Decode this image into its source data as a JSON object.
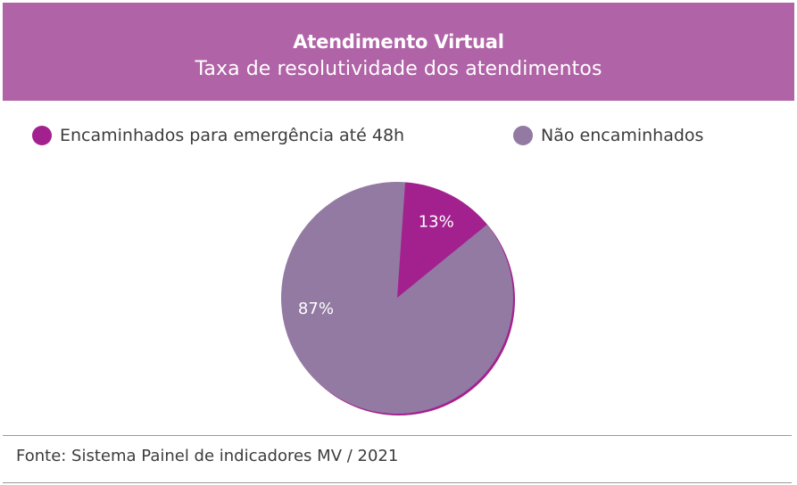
{
  "header": {
    "title": "Atendimento Virtual",
    "subtitle": "Taxa de resolutividade dos atendimentos"
  },
  "colors": {
    "header_bg": "#b063a6",
    "encaminhados": "#a3218f",
    "nao_encaminhados": "#927aa2",
    "label_text": "#ffffff"
  },
  "chart_data": {
    "type": "pie",
    "title": "Atendimento Virtual",
    "subtitle": "Taxa de resolutividade dos atendimentos",
    "legend_position": "top",
    "slices": [
      {
        "label": "Encaminhados para emergência até 48h",
        "value": 13,
        "display": "13%",
        "color": "#a3218f"
      },
      {
        "label": "Não encaminhados",
        "value": 87,
        "display": "87%",
        "color": "#927aa2"
      }
    ]
  },
  "footer": {
    "source": "Fonte: Sistema Painel de indicadores MV / 2021"
  }
}
